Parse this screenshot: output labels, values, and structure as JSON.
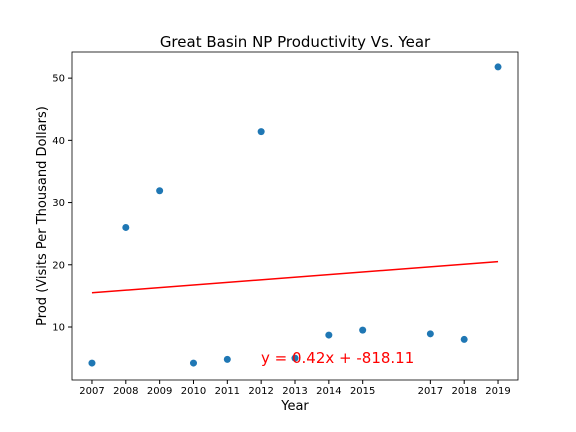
{
  "chart_data": {
    "type": "scatter",
    "title": "Great Basin NP Productivity Vs. Year",
    "x_label": "Year",
    "y_label": "Prod (Visits Per Thousand Dollars)",
    "x": [
      2007,
      2008,
      2009,
      2010,
      2011,
      2012,
      2013,
      2014,
      2015,
      2017,
      2018,
      2019
    ],
    "values": [
      4.2,
      26.0,
      31.9,
      4.2,
      4.8,
      41.4,
      5.0,
      8.7,
      9.5,
      8.9,
      8.0,
      51.8
    ],
    "color": "#1f77b4",
    "fit": {
      "x": [
        2007,
        2019
      ],
      "values": [
        15.5,
        20.5
      ],
      "color": "#ff0000"
    },
    "annotation": "y = 0.42x + -818.11",
    "annotation_color": "#ff0000",
    "xlim": [
      2006.41,
      2019.59
    ],
    "ylim": [
      1.48,
      54.2
    ],
    "xticks": [
      2007,
      2008,
      2009,
      2010,
      2011,
      2012,
      2013,
      2014,
      2015,
      2017,
      2018,
      2019
    ],
    "yticks": [
      10,
      20,
      30,
      40,
      50
    ]
  }
}
